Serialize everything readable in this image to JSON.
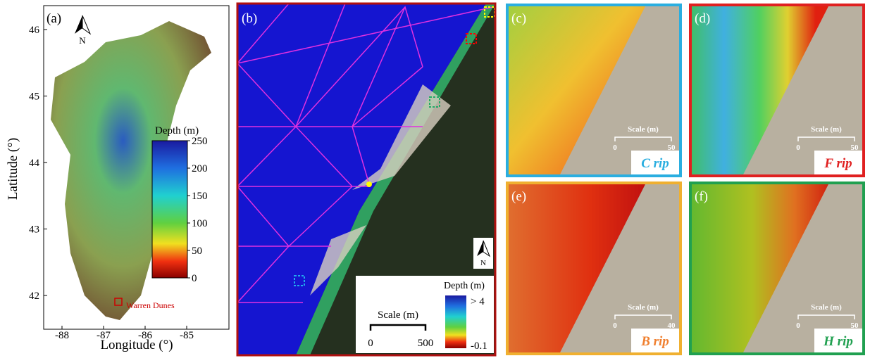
{
  "panels": [
    {
      "label": "(a)",
      "north": "N",
      "x_axis": {
        "label": "Longitude (°)",
        "ticks": [
          -88,
          -87,
          -86,
          -85
        ]
      },
      "y_axis": {
        "label": "Latitude (°)",
        "ticks": [
          42,
          43,
          44,
          45,
          46
        ]
      },
      "colorbar": {
        "title": "Depth (m)",
        "ticks": [
          0,
          50,
          100,
          150,
          200,
          250
        ]
      },
      "site_label": "Warren Dunes"
    },
    {
      "label": "(b)",
      "north": "N",
      "colorbar": {
        "title": "Depth (m)",
        "top_label": "> 4",
        "bottom_label": "-0.1"
      },
      "scale": {
        "title": "Scale (m)",
        "ticks": [
          0,
          500
        ]
      }
    },
    {
      "label": "(c)",
      "name": "C rip",
      "scale": {
        "title": "Scale (m)",
        "ticks": [
          0,
          50
        ]
      }
    },
    {
      "label": "(d)",
      "name": "F rip",
      "scale": {
        "title": "Scale (m)",
        "ticks": [
          0,
          50
        ]
      }
    },
    {
      "label": "(e)",
      "name": "B rip",
      "scale": {
        "title": "Scale (m)",
        "ticks": [
          0,
          40
        ]
      }
    },
    {
      "label": "(f)",
      "name": "H rip",
      "scale": {
        "title": "Scale (m)",
        "ticks": [
          0,
          50
        ]
      }
    }
  ]
}
